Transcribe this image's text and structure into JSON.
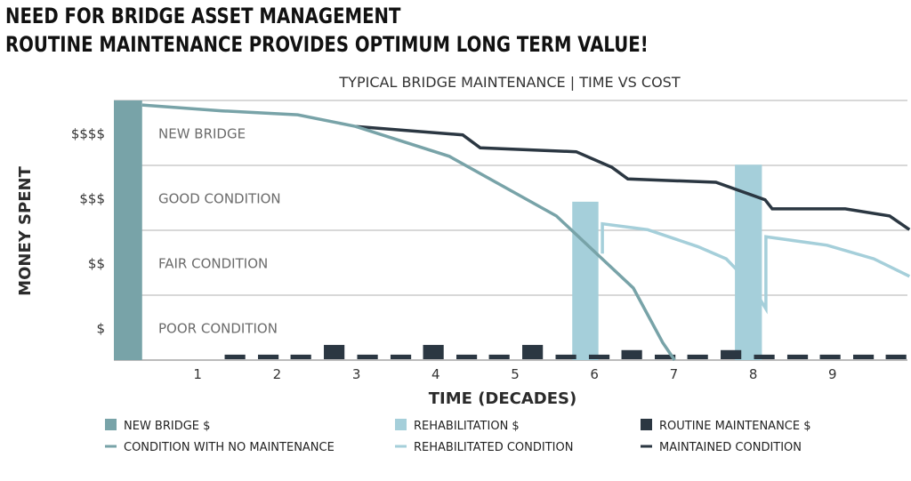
{
  "headline": {
    "line1": "NEED FOR BRIDGE ASSET MANAGEMENT",
    "line2": "ROUTINE MAINTENANCE PROVIDES OPTIMUM LONG TERM VALUE!"
  },
  "chart_data": {
    "type": "bar+line",
    "title": "TYPICAL BRIDGE MAINTENANCE | TIME VS COST",
    "xlabel": "TIME (DECADES)",
    "ylabel": "MONEY SPENT",
    "xlim": [
      0,
      10
    ],
    "ylim": [
      0,
      4
    ],
    "grid": true,
    "x_ticks": [
      "1",
      "2",
      "3",
      "4",
      "5",
      "6",
      "7",
      "8",
      "9"
    ],
    "y_ticks": [
      {
        "label": "$$$$",
        "value": 3.5
      },
      {
        "label": "$$$",
        "value": 2.5
      },
      {
        "label": "$$",
        "value": 1.5
      },
      {
        "label": "$",
        "value": 0.5
      }
    ],
    "bands": [
      {
        "label": "NEW BRIDGE",
        "value": 3.5
      },
      {
        "label": "GOOD CONDITION",
        "value": 2.5
      },
      {
        "label": "FAIR CONDITION",
        "value": 1.5
      },
      {
        "label": "POOR CONDITION",
        "value": 0.5
      }
    ],
    "colors": {
      "new_bridge": "#78a3a8",
      "rehabilitation": "#a5cfda",
      "routine": "#2b3742",
      "no_maintenance": "#78a3a8",
      "rehabilitated": "#a5cfda",
      "maintained": "#2b3742",
      "grid": "#cccccc"
    },
    "bars": {
      "new_bridge": [
        {
          "x0": 0,
          "x1": 0.3,
          "value": 4.0
        }
      ],
      "rehabilitation": [
        {
          "x0": 5.72,
          "x1": 6.05,
          "value": 2.44
        },
        {
          "x0": 7.77,
          "x1": 8.11,
          "value": 3.01
        }
      ],
      "routine_maintenance": {
        "width": 0.26,
        "x": [
          1.47,
          1.89,
          2.3,
          2.72,
          3.14,
          3.56,
          3.97,
          4.39,
          4.8,
          5.22,
          5.64,
          6.06,
          6.47,
          6.89,
          7.3,
          7.72,
          8.14,
          8.56,
          8.97,
          9.39,
          9.8
        ],
        "values": [
          0.07,
          0.07,
          0.07,
          0.22,
          0.07,
          0.07,
          0.22,
          0.07,
          0.07,
          0.22,
          0.07,
          0.07,
          0.14,
          0.07,
          0.07,
          0.14,
          0.07,
          0.07,
          0.07,
          0.07,
          0.07
        ]
      }
    },
    "lines": {
      "no_maintenance": [
        [
          0.3,
          3.93
        ],
        [
          1.31,
          3.84
        ],
        [
          2.26,
          3.78
        ],
        [
          2.99,
          3.6
        ],
        [
          4.17,
          3.14
        ],
        [
          5.52,
          2.22
        ],
        [
          6.49,
          1.11
        ],
        [
          6.86,
          0.27
        ],
        [
          7.01,
          0
        ]
      ],
      "maintained": [
        [
          2.99,
          3.6
        ],
        [
          4.34,
          3.47
        ],
        [
          4.56,
          3.27
        ],
        [
          5.77,
          3.21
        ],
        [
          6.22,
          2.97
        ],
        [
          6.42,
          2.79
        ],
        [
          7.53,
          2.74
        ],
        [
          8.15,
          2.47
        ],
        [
          8.24,
          2.33
        ],
        [
          9.16,
          2.33
        ],
        [
          9.72,
          2.22
        ],
        [
          9.97,
          2.01
        ]
      ],
      "rehabilitated_1": [
        [
          6.1,
          1.64
        ],
        [
          6.1,
          2.1
        ],
        [
          6.67,
          2.01
        ],
        [
          7.3,
          1.75
        ],
        [
          7.66,
          1.56
        ],
        [
          7.81,
          1.37
        ]
      ],
      "rehabilitated_2": [
        [
          8.09,
          0.93
        ],
        [
          8.16,
          0.79
        ],
        [
          8.16,
          1.9
        ],
        [
          8.93,
          1.77
        ],
        [
          9.52,
          1.56
        ],
        [
          9.97,
          1.29
        ]
      ]
    },
    "legend": {
      "placement": "bottom",
      "entries": [
        {
          "label": "NEW BRIDGE $",
          "kind": "box",
          "color": "#78a3a8"
        },
        {
          "label": "REHABILITATION $",
          "kind": "box",
          "color": "#a5cfda"
        },
        {
          "label": "ROUTINE MAINTENANCE $",
          "kind": "box",
          "color": "#2b3742"
        },
        {
          "label": "CONDITION WITH NO MAINTENANCE",
          "kind": "line",
          "color": "#78a3a8"
        },
        {
          "label": "REHABILITATED CONDITION",
          "kind": "line",
          "color": "#a5cfda"
        },
        {
          "label": "MAINTAINED CONDITION",
          "kind": "line",
          "color": "#2b3742"
        }
      ]
    }
  }
}
